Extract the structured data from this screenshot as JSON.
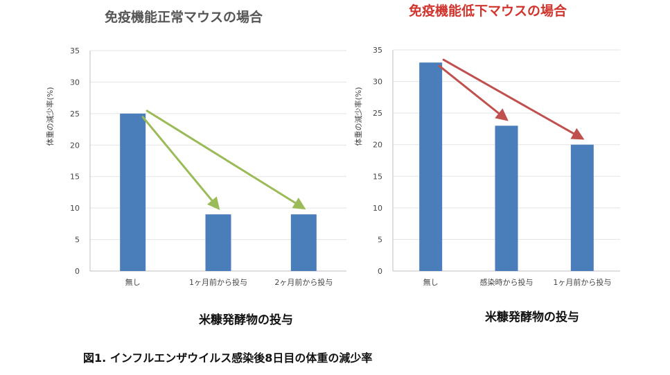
{
  "caption": "図1. インフルエンザウイルス感染後8日目の体重の減少率",
  "chart_data": [
    {
      "type": "bar",
      "title": "免疫機能正常マウスの場合",
      "ylabel": "体重の減少率(%)",
      "xlabel": "米糠発酵物の投与",
      "categories": [
        "無し",
        "1ヶ月前から投与",
        "2ヶ月前から投与"
      ],
      "values": [
        25,
        9,
        9
      ],
      "ylim": [
        0,
        35
      ],
      "yticks": [
        0,
        5,
        10,
        15,
        20,
        25,
        30,
        35
      ],
      "grid": true,
      "bar_color": "#4a7ebb",
      "arrow_color": "#9bbb59",
      "arrows": [
        {
          "from": 0,
          "to": 1
        },
        {
          "from": 0,
          "to": 2
        }
      ]
    },
    {
      "type": "bar",
      "title": "免疫機能低下マウスの場合",
      "ylabel": "体重の減少率(%)",
      "xlabel": "米糠発酵物の投与",
      "categories": [
        "無し",
        "感染時から投与",
        "1ヶ月前から投与"
      ],
      "values": [
        33,
        23,
        20
      ],
      "ylim": [
        0,
        35
      ],
      "yticks": [
        0,
        5,
        10,
        15,
        20,
        25,
        30,
        35
      ],
      "grid": true,
      "bar_color": "#4a7ebb",
      "arrow_color": "#c0504d",
      "arrows": [
        {
          "from": 0,
          "to": 1
        },
        {
          "from": 0,
          "to": 2
        }
      ]
    }
  ]
}
